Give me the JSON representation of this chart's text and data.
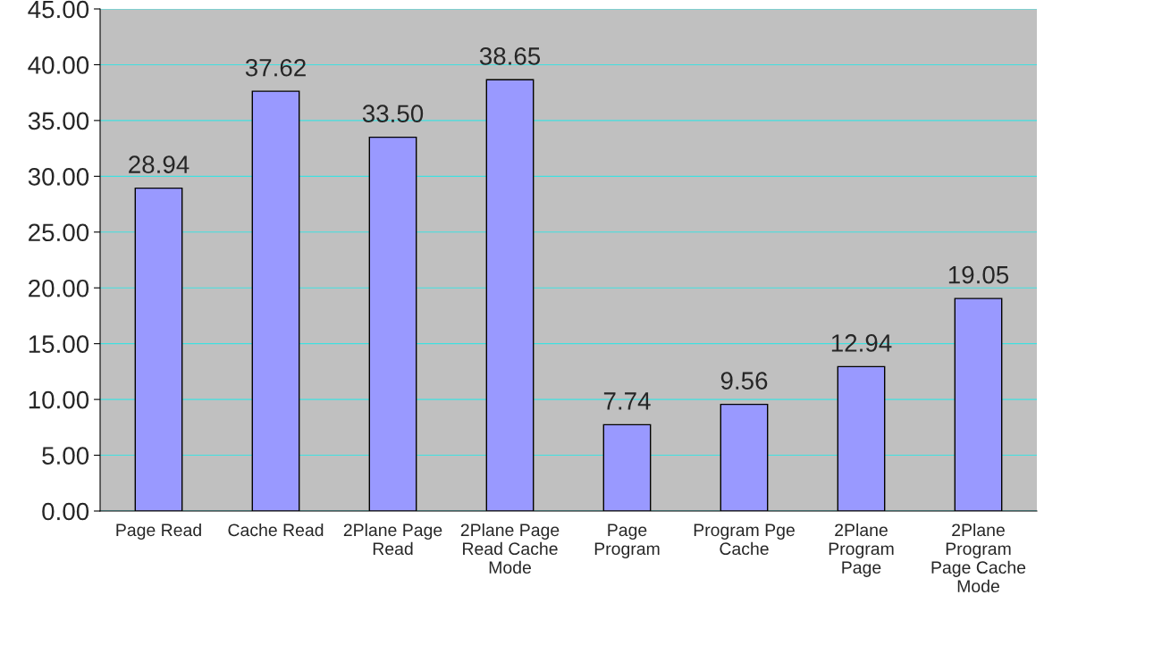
{
  "chart_data": {
    "type": "bar",
    "categories": [
      "Page Read",
      "Cache Read",
      "2Plane Page Read",
      "2Plane Page Read Cache Mode",
      "Page Program",
      "Program Pge Cache",
      "2Plane Program Page",
      "2Plane Program Page Cache Mode"
    ],
    "values": [
      28.94,
      37.62,
      33.5,
      38.65,
      7.74,
      9.56,
      12.94,
      19.05
    ],
    "value_labels": [
      "28.94",
      "37.62",
      "33.50",
      "38.65",
      "7.74",
      "9.56",
      "12.94",
      "19.05"
    ],
    "color": "#9999ff",
    "ylim": [
      0,
      45
    ],
    "yticks": [
      {
        "value": 0,
        "label": "0.00"
      },
      {
        "value": 5,
        "label": "5.00"
      },
      {
        "value": 10,
        "label": "10.00"
      },
      {
        "value": 15,
        "label": "15.00"
      },
      {
        "value": 20,
        "label": "20.00"
      },
      {
        "value": 25,
        "label": "25.00"
      },
      {
        "value": 30,
        "label": "30.00"
      },
      {
        "value": 35,
        "label": "35.00"
      },
      {
        "value": 40,
        "label": "40.00"
      },
      {
        "value": 45,
        "label": "45.00"
      }
    ],
    "grid": "y",
    "legend": false
  }
}
